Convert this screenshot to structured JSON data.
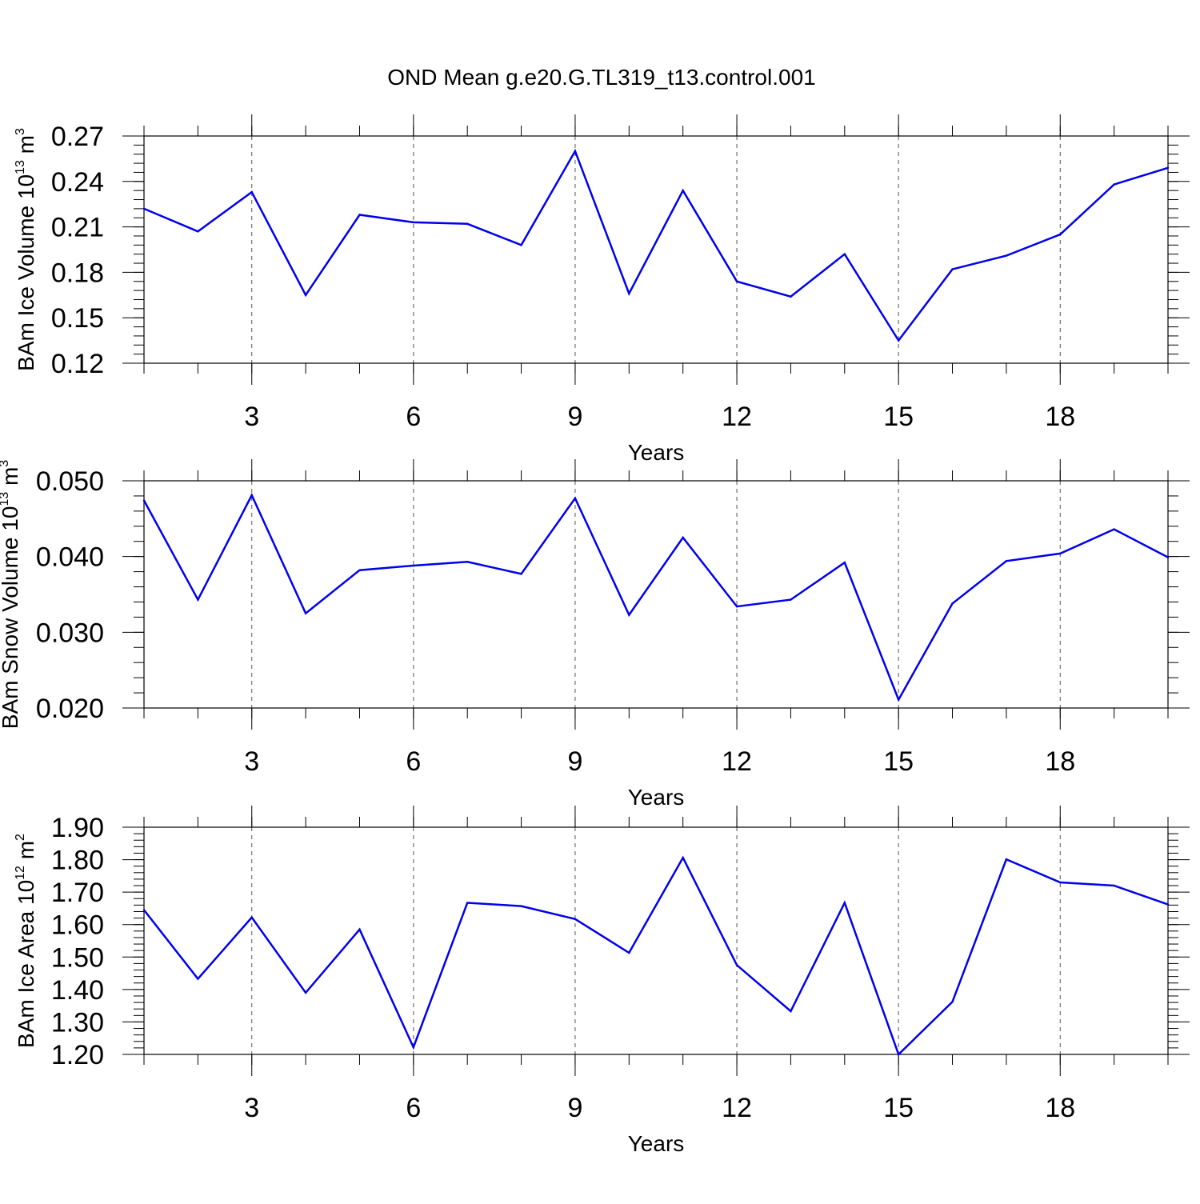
{
  "title": "OND Mean g.e20.G.TL319_t13.control.001",
  "colors": {
    "line": "#0000ee",
    "axis": "#000000",
    "grid": "#555555"
  },
  "chart_data": [
    {
      "type": "line",
      "title": "OND Mean g.e20.G.TL319_t13.control.001",
      "xlabel": "Years",
      "ylabel_main": "BAm Ice Volume 10",
      "ylabel_exp": "13",
      "ylabel_unit": " m",
      "ylabel_unit_exp": "3",
      "xlim": [
        1,
        20
      ],
      "ylim": [
        0.12,
        0.27
      ],
      "xticks": [
        3,
        6,
        9,
        12,
        15,
        18
      ],
      "xtick_labels": [
        "3",
        "6",
        "9",
        "12",
        "15",
        "18"
      ],
      "yticks": [
        0.12,
        0.15,
        0.18,
        0.21,
        0.24,
        0.27
      ],
      "ytick_labels": [
        "0.12",
        "0.15",
        "0.18",
        "0.21",
        "0.24",
        "0.27"
      ],
      "grid": "dashed vertical at major x ticks",
      "series": [
        {
          "name": "BAm Ice Volume",
          "x": [
            1,
            2,
            3,
            4,
            5,
            6,
            7,
            8,
            9,
            10,
            11,
            12,
            13,
            14,
            15,
            16,
            17,
            18,
            19,
            20
          ],
          "values": [
            0.222,
            0.207,
            0.233,
            0.165,
            0.218,
            0.213,
            0.212,
            0.198,
            0.26,
            0.166,
            0.234,
            0.174,
            0.164,
            0.192,
            0.135,
            0.182,
            0.191,
            0.205,
            0.238,
            0.249
          ]
        }
      ]
    },
    {
      "type": "line",
      "xlabel": "Years",
      "ylabel_main": "BAm Snow Volume 10",
      "ylabel_exp": "13",
      "ylabel_unit": " m",
      "ylabel_unit_exp": "3",
      "xlim": [
        1,
        20
      ],
      "ylim": [
        0.02,
        0.05
      ],
      "xticks": [
        3,
        6,
        9,
        12,
        15,
        18
      ],
      "xtick_labels": [
        "3",
        "6",
        "9",
        "12",
        "15",
        "18"
      ],
      "yticks": [
        0.02,
        0.03,
        0.04,
        0.05
      ],
      "ytick_labels": [
        "0.020",
        "0.030",
        "0.040",
        "0.050"
      ],
      "grid": "dashed vertical at major x ticks",
      "series": [
        {
          "name": "BAm Snow Volume",
          "x": [
            1,
            2,
            3,
            4,
            5,
            6,
            7,
            8,
            9,
            10,
            11,
            12,
            13,
            14,
            15,
            16,
            17,
            18,
            19,
            20
          ],
          "values": [
            0.0474,
            0.0343,
            0.0481,
            0.0325,
            0.0382,
            0.0388,
            0.0393,
            0.0377,
            0.0477,
            0.0323,
            0.0425,
            0.0334,
            0.0343,
            0.0392,
            0.0211,
            0.0338,
            0.0394,
            0.0404,
            0.0436,
            0.0399
          ]
        }
      ]
    },
    {
      "type": "line",
      "xlabel": "Years",
      "ylabel_main": "BAm Ice Area 10",
      "ylabel_exp": "12",
      "ylabel_unit": " m",
      "ylabel_unit_exp": "2",
      "xlim": [
        1,
        20
      ],
      "ylim": [
        1.2,
        1.9
      ],
      "xticks": [
        3,
        6,
        9,
        12,
        15,
        18
      ],
      "xtick_labels": [
        "3",
        "6",
        "9",
        "12",
        "15",
        "18"
      ],
      "yticks": [
        1.2,
        1.3,
        1.4,
        1.5,
        1.6,
        1.7,
        1.8,
        1.9
      ],
      "ytick_labels": [
        "1.20",
        "1.30",
        "1.40",
        "1.50",
        "1.60",
        "1.70",
        "1.80",
        "1.90"
      ],
      "grid": "dashed vertical at major x ticks",
      "series": [
        {
          "name": "BAm Ice Area",
          "x": [
            1,
            2,
            3,
            4,
            5,
            6,
            7,
            8,
            9,
            10,
            11,
            12,
            13,
            14,
            15,
            16,
            17,
            18,
            19,
            20
          ],
          "values": [
            1.645,
            1.433,
            1.622,
            1.39,
            1.585,
            1.222,
            1.667,
            1.657,
            1.617,
            1.513,
            1.806,
            1.475,
            1.333,
            1.667,
            1.2,
            1.362,
            1.801,
            1.73,
            1.72,
            1.662
          ]
        }
      ]
    }
  ]
}
